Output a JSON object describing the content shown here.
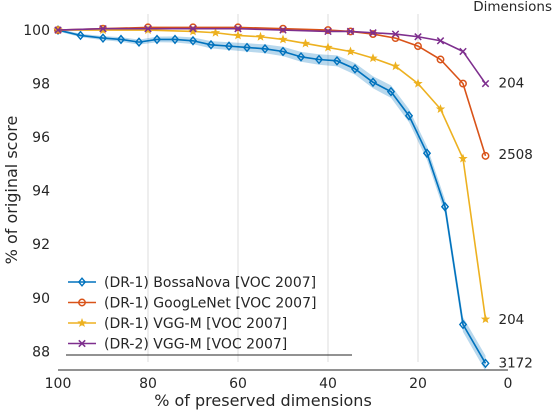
{
  "chart_data": {
    "type": "line",
    "title": "",
    "xlabel": "% of preserved dimensions",
    "ylabel": "% of original score",
    "corner_title": "Dimensions",
    "xlim": [
      100,
      0
    ],
    "ylim": [
      87.6,
      100.6
    ],
    "x_reversed": true,
    "xticks": [
      100,
      80,
      60,
      40,
      20,
      0
    ],
    "yticks": [
      88,
      90,
      92,
      94,
      96,
      98,
      100
    ],
    "grid": "x-only",
    "legend_position": "lower-left",
    "series": [
      {
        "name": "(DR-1) BossaNova [VOC 2007]",
        "color": "#0072bd",
        "marker": "diamond",
        "band": true,
        "x": [
          100,
          95,
          90,
          86,
          82,
          78,
          74,
          70,
          66,
          62,
          58,
          54,
          50,
          46,
          42,
          38,
          34,
          30,
          26,
          22,
          18,
          14,
          10,
          5
        ],
        "y": [
          100,
          99.8,
          99.7,
          99.65,
          99.55,
          99.65,
          99.65,
          99.6,
          99.45,
          99.4,
          99.35,
          99.3,
          99.2,
          99.0,
          98.9,
          98.85,
          98.55,
          98.05,
          97.7,
          96.8,
          95.4,
          93.4,
          89.0,
          87.55
        ],
        "end_label": "3172"
      },
      {
        "name": "(DR-1) GoogLeNet [VOC 2007]",
        "color": "#d95319",
        "marker": "circle",
        "band": false,
        "x": [
          100,
          90,
          80,
          70,
          60,
          50,
          40,
          35,
          30,
          25,
          20,
          15,
          10,
          5
        ],
        "y": [
          100,
          100.05,
          100.1,
          100.1,
          100.1,
          100.05,
          100.0,
          99.95,
          99.85,
          99.7,
          99.4,
          98.9,
          98.0,
          95.3
        ],
        "end_label": "2508"
      },
      {
        "name": "(DR-1) VGG-M [VOC 2007]",
        "color": "#edb120",
        "marker": "star",
        "band": false,
        "x": [
          100,
          90,
          80,
          70,
          65,
          60,
          55,
          50,
          45,
          40,
          35,
          30,
          25,
          20,
          15,
          10,
          5
        ],
        "y": [
          100,
          100,
          100,
          99.95,
          99.9,
          99.8,
          99.75,
          99.65,
          99.5,
          99.35,
          99.2,
          98.95,
          98.65,
          98.0,
          97.05,
          95.2,
          89.2
        ],
        "end_label": "204"
      },
      {
        "name": "(DR-2) VGG-M [VOC 2007]",
        "color": "#7e2f8e",
        "marker": "x",
        "band": false,
        "x": [
          100,
          90,
          80,
          70,
          60,
          50,
          40,
          35,
          30,
          25,
          20,
          15,
          10,
          5
        ],
        "y": [
          100,
          100.05,
          100.05,
          100.05,
          100.05,
          100.0,
          99.95,
          99.95,
          99.9,
          99.85,
          99.75,
          99.6,
          99.2,
          98.0
        ],
        "end_label": "204"
      }
    ]
  }
}
